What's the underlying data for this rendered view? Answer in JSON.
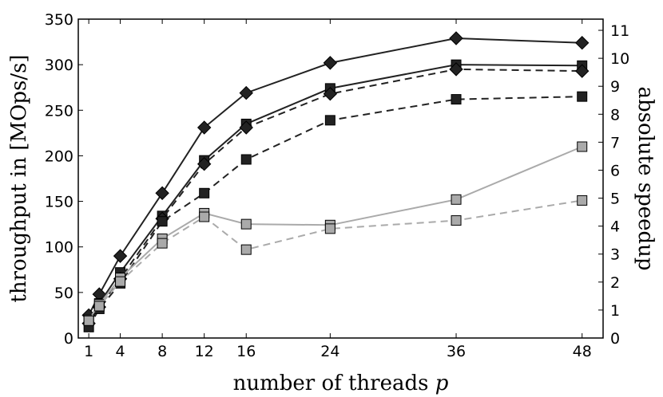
{
  "chart_data": {
    "type": "line",
    "title": "",
    "xlabel": "number of threads",
    "xlabel_var": "p",
    "ylabel": "throughput in [MOps/s]",
    "y2label": "absolute speedup",
    "xlim": [
      0,
      50
    ],
    "ylim": [
      0,
      350
    ],
    "y2lim": [
      0,
      11.4
    ],
    "x_ticks": [
      1,
      4,
      8,
      12,
      16,
      24,
      36,
      48
    ],
    "y_ticks": [
      0,
      50,
      100,
      150,
      200,
      250,
      300,
      350
    ],
    "y2_ticks": [
      0,
      1,
      2,
      3,
      4,
      5,
      6,
      7,
      8,
      9,
      10,
      11
    ],
    "grid": false,
    "legend": "none",
    "series": [
      {
        "marker": "diamond",
        "line": "solid",
        "color": "#222222",
        "x": [
          1,
          2,
          4,
          8,
          12,
          16,
          24,
          36,
          48
        ],
        "values": [
          25,
          48,
          90,
          159,
          231,
          269,
          302,
          329,
          324
        ]
      },
      {
        "marker": "square",
        "line": "solid",
        "color": "#222222",
        "x": [
          1,
          2,
          4,
          8,
          12,
          16,
          24,
          36,
          48
        ],
        "values": [
          19,
          38,
          72,
          134,
          195,
          235,
          274,
          300,
          299
        ]
      },
      {
        "marker": "diamond",
        "line": "dashed",
        "color": "#222222",
        "x": [
          1,
          2,
          4,
          8,
          12,
          16,
          24,
          36,
          48
        ],
        "values": [
          16,
          34,
          65,
          131,
          191,
          231,
          268,
          295,
          293
        ]
      },
      {
        "marker": "square",
        "line": "dashed",
        "color": "#222222",
        "x": [
          1,
          2,
          4,
          8,
          12,
          16,
          24,
          36,
          48
        ],
        "values": [
          12,
          32,
          60,
          128,
          159,
          196,
          239,
          262,
          265
        ]
      },
      {
        "marker": "square",
        "line": "solid",
        "color": "#aaaaaa",
        "x": [
          1,
          2,
          4,
          8,
          12,
          16,
          24,
          36,
          48
        ],
        "values": [
          20,
          37,
          66,
          109,
          137,
          125,
          124,
          152,
          210
        ]
      },
      {
        "marker": "square",
        "line": "dashed",
        "color": "#aaaaaa",
        "x": [
          1,
          2,
          4,
          8,
          12,
          16,
          24,
          36,
          48
        ],
        "values": [
          19,
          35,
          62,
          104,
          133,
          97,
          120,
          129,
          151
        ]
      }
    ]
  }
}
